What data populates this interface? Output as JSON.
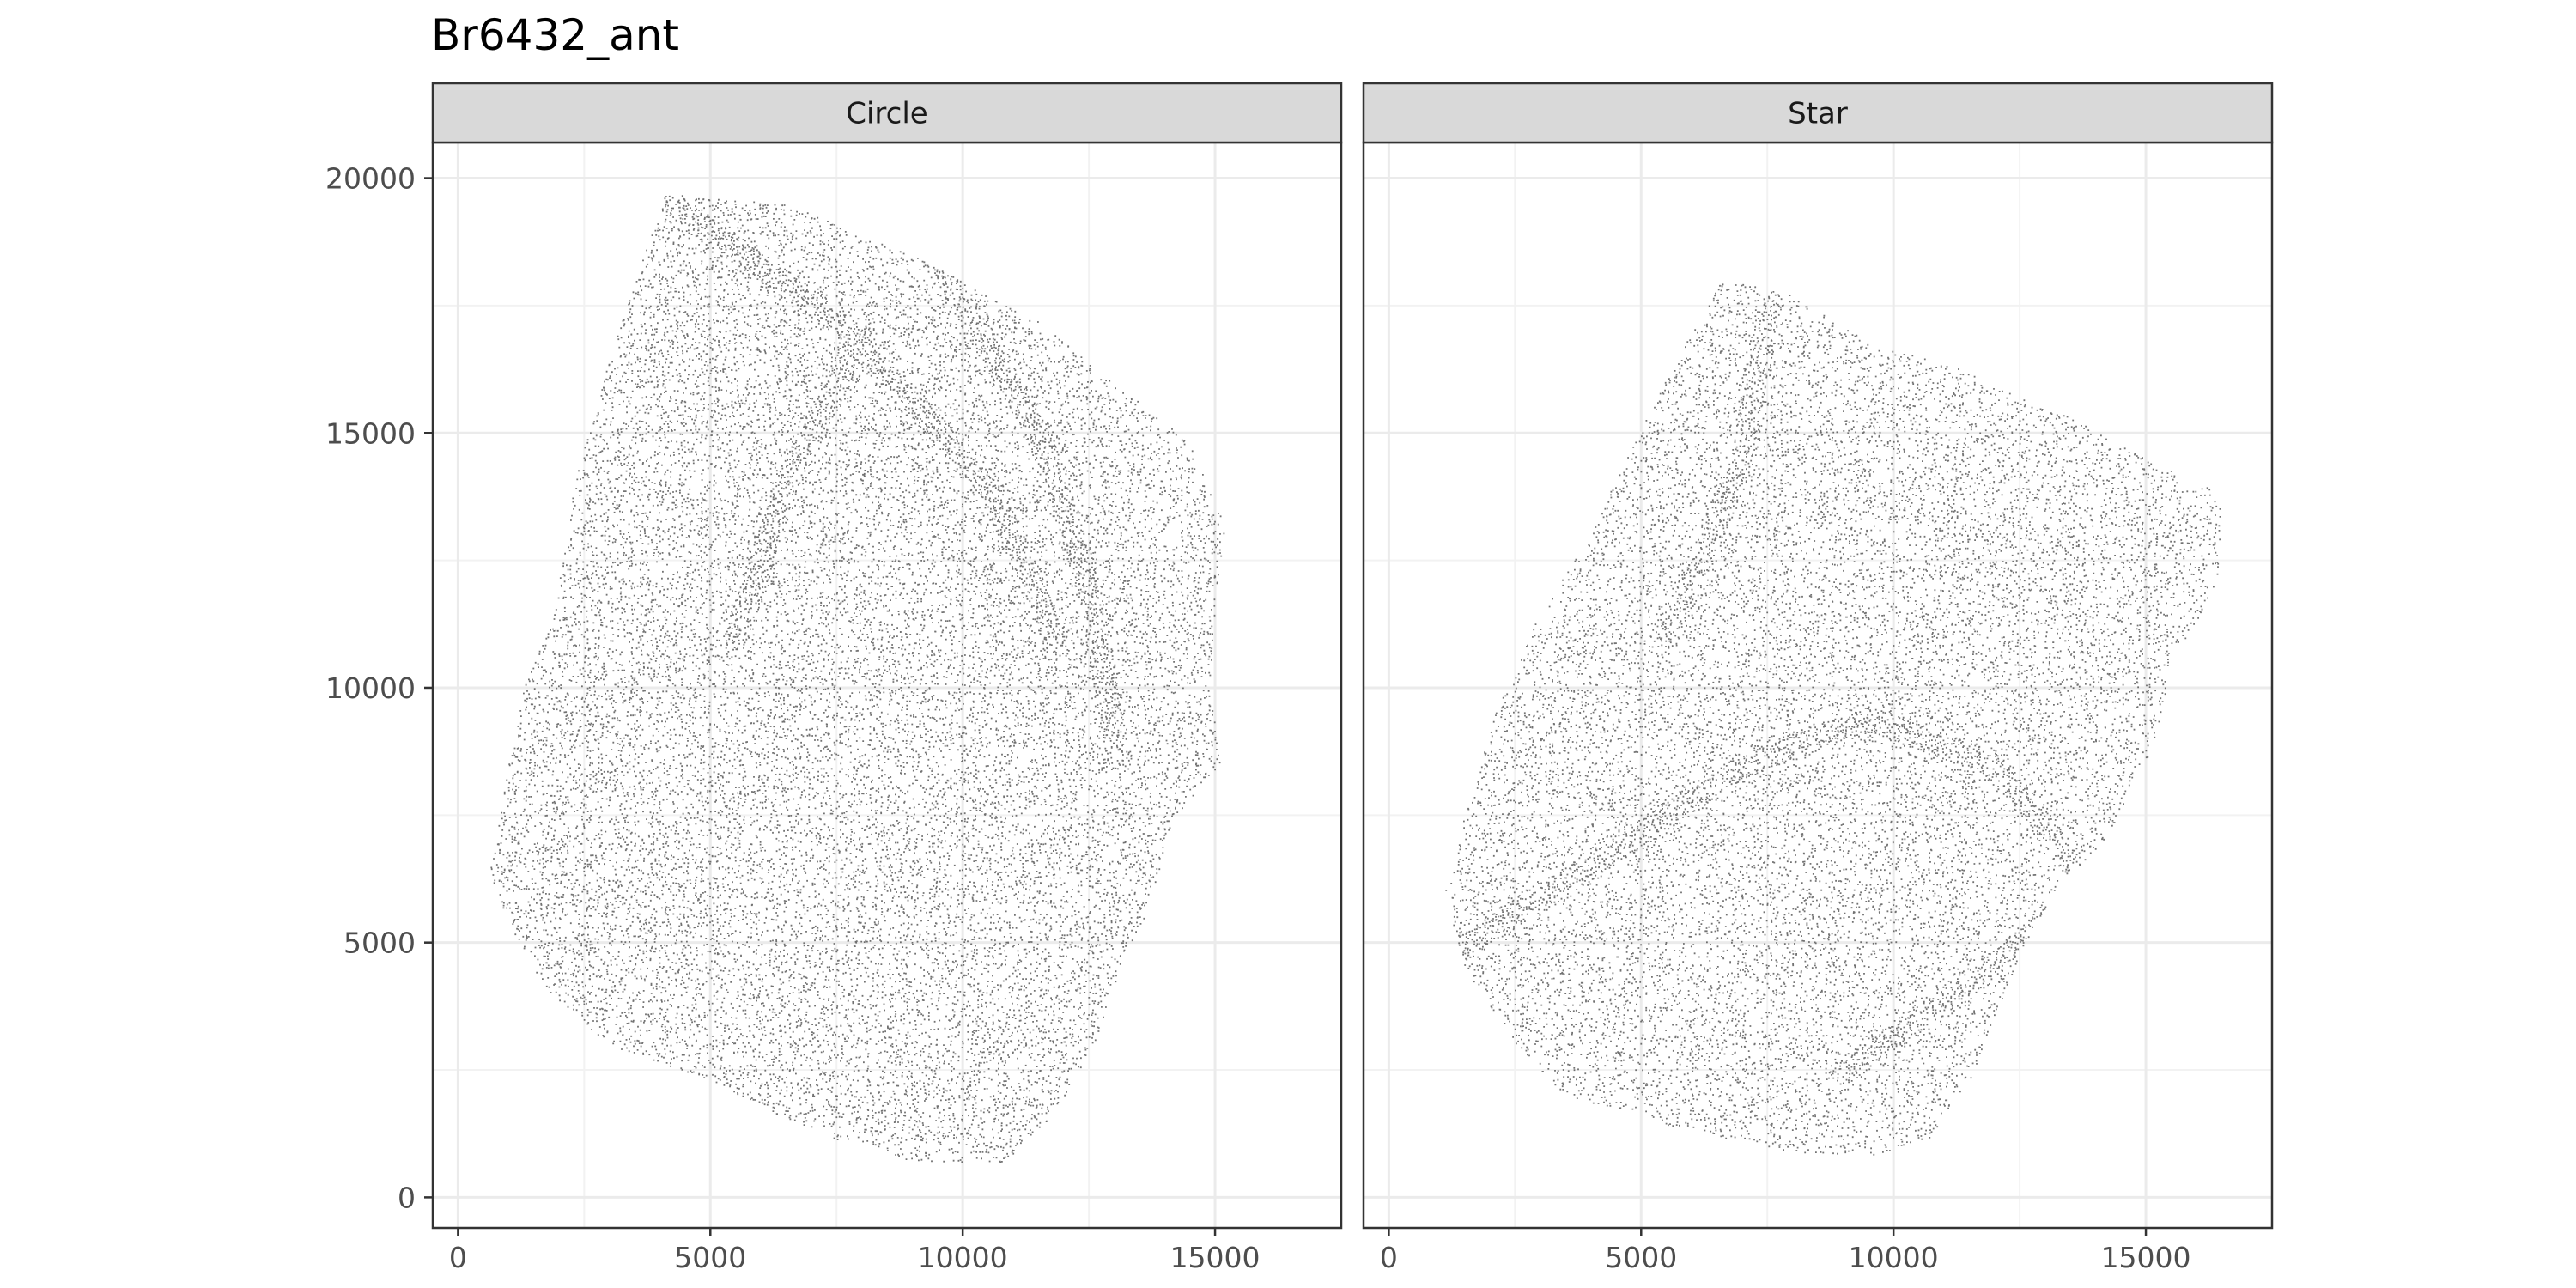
{
  "chart_data": {
    "type": "scatter",
    "title": "Br6432_ant",
    "facet_labels": [
      "Circle",
      "Star"
    ],
    "xlim": [
      -500,
      17500
    ],
    "ylim": [
      -600,
      20700
    ],
    "x_ticks": [
      0,
      5000,
      10000,
      15000
    ],
    "y_ticks": [
      0,
      5000,
      10000,
      15000,
      20000
    ],
    "point_color": "#595959",
    "background": "#ffffff",
    "grid": true,
    "legend": "none",
    "panels": [
      {
        "name": "Circle",
        "outline": [
          [
            4100,
            19700
          ],
          [
            6500,
            19500
          ],
          [
            9000,
            18500
          ],
          [
            11500,
            17200
          ],
          [
            13500,
            15600
          ],
          [
            14500,
            14800
          ],
          [
            15200,
            13200
          ],
          [
            15000,
            11500
          ],
          [
            14900,
            10000
          ],
          [
            15100,
            8500
          ],
          [
            14200,
            7500
          ],
          [
            13600,
            5500
          ],
          [
            13000,
            4200
          ],
          [
            12600,
            3000
          ],
          [
            11700,
            1500
          ],
          [
            10800,
            700
          ],
          [
            9000,
            700
          ],
          [
            7000,
            1300
          ],
          [
            5000,
            2300
          ],
          [
            3000,
            3000
          ],
          [
            1800,
            4000
          ],
          [
            1200,
            5000
          ],
          [
            600,
            6300
          ],
          [
            900,
            8000
          ],
          [
            1300,
            10000
          ],
          [
            1900,
            11500
          ],
          [
            2300,
            14000
          ],
          [
            3000,
            16500
          ]
        ],
        "sparse_streaks": [
          [
            [
              4100,
              19600
            ],
            [
              7500,
              17200
            ],
            [
              10500,
              14000
            ],
            [
              11800,
              11000
            ]
          ],
          [
            [
              9500,
              18400
            ],
            [
              11500,
              15000
            ],
            [
              12500,
              12000
            ],
            [
              13000,
              9000
            ]
          ],
          [
            [
              8000,
              17000
            ],
            [
              6500,
              14000
            ],
            [
              5500,
              11000
            ]
          ]
        ],
        "density": 0.034
      },
      {
        "name": "Star",
        "outline": [
          [
            6600,
            18000
          ],
          [
            7800,
            17800
          ],
          [
            9500,
            16800
          ],
          [
            11500,
            16200
          ],
          [
            13500,
            15300
          ],
          [
            15000,
            14500
          ],
          [
            16500,
            13800
          ],
          [
            16400,
            12000
          ],
          [
            15500,
            10500
          ],
          [
            15200,
            9000
          ],
          [
            14200,
            7000
          ],
          [
            13300,
            6200
          ],
          [
            12500,
            4800
          ],
          [
            11500,
            2300
          ],
          [
            10800,
            1200
          ],
          [
            9500,
            800
          ],
          [
            8000,
            900
          ],
          [
            6000,
            1300
          ],
          [
            3500,
            2000
          ],
          [
            2500,
            3000
          ],
          [
            1500,
            4500
          ],
          [
            1100,
            6000
          ],
          [
            1500,
            7500
          ],
          [
            2100,
            9500
          ],
          [
            3000,
            11500
          ],
          [
            4200,
            13500
          ],
          [
            5200,
            15500
          ],
          [
            6000,
            17000
          ]
        ],
        "sparse_streaks": [
          [
            [
              1500,
              5000
            ],
            [
              4000,
              6500
            ],
            [
              7000,
              8500
            ],
            [
              9500,
              9400
            ],
            [
              12000,
              8500
            ],
            [
              14000,
              6000
            ]
          ],
          [
            [
              9000,
              2500
            ],
            [
              11500,
              4200
            ],
            [
              13500,
              5800
            ],
            [
              15000,
              7500
            ]
          ],
          [
            [
              7500,
              17500
            ],
            [
              7000,
              14500
            ],
            [
              5500,
              11000
            ]
          ]
        ],
        "density": 0.03
      }
    ]
  }
}
